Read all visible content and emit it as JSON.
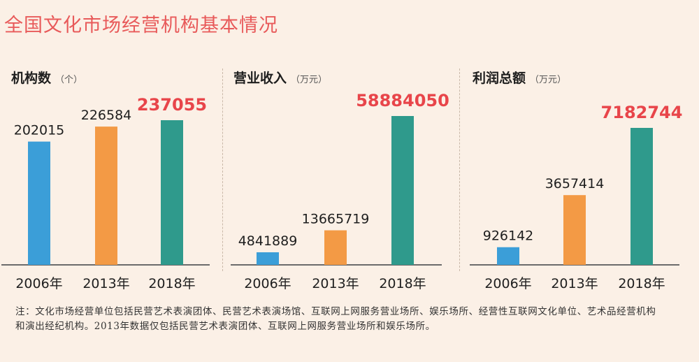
{
  "title": "全国文化市场经营机构基本情况",
  "colors": {
    "c2006": "#3b9ed8",
    "c2013": "#f39a45",
    "c2018": "#2f9a8c",
    "highlight": "#e8454a"
  },
  "chart_data": [
    {
      "type": "bar",
      "title": "机构数",
      "unit": "（个）",
      "categories": [
        "2006年",
        "2013年",
        "2018年"
      ],
      "values": [
        202015,
        226584,
        237055
      ],
      "value_labels": [
        "202015",
        "226584",
        "237055"
      ]
    },
    {
      "type": "bar",
      "title": "营业收入",
      "unit": "（万元）",
      "categories": [
        "2006年",
        "2013年",
        "2018年"
      ],
      "values": [
        4841889,
        13665719,
        58884050
      ],
      "value_labels": [
        "4841889",
        "13665719",
        "58884050"
      ]
    },
    {
      "type": "bar",
      "title": "利润总额",
      "unit": "（万元）",
      "categories": [
        "2006年",
        "2013年",
        "2018年"
      ],
      "values": [
        926142,
        3657414,
        7182744
      ],
      "value_labels": [
        "926142",
        "3657414",
        "7182744"
      ]
    }
  ],
  "footnote": "注：文化市场经营单位包括民营艺术表演团体、民营艺术表演场馆、互联网上网服务营业场所、娱乐场所、经营性互联网文化单位、艺术品经营机构和演出经纪机构。2013年数据仅包括民营艺术表演团体、互联网上网服务营业场所和娱乐场所。"
}
